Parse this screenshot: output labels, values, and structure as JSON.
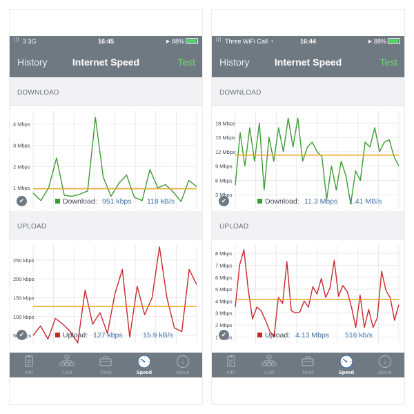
{
  "screens": [
    {
      "status": {
        "signal": "3",
        "carrier": "3G",
        "wifi": false,
        "time": "16:45",
        "battery": "88%"
      },
      "nav": {
        "left": "History",
        "title": "Internet Speed",
        "right": "Test"
      },
      "download": {
        "header": "DOWNLOAD",
        "label": "Download:",
        "value1": "951 kbps",
        "value2": "118 kB/s",
        "color": "#3c9a34",
        "chart_data": {
          "type": "line",
          "yticks": [
            "4 Mbps",
            "3 Mbps",
            "2 Mbps",
            "1 Mbps"
          ],
          "ytick_values": [
            4,
            3,
            2,
            1
          ],
          "ylim": [
            0,
            4.6
          ],
          "average": 0.95,
          "values": [
            0.75,
            0.4,
            1.0,
            2.4,
            0.65,
            0.6,
            0.7,
            0.85,
            4.3,
            1.5,
            0.6,
            1.2,
            1.6,
            0.55,
            0.4,
            1.85,
            1.0,
            1.15,
            0.8,
            0.35,
            1.35,
            1.05
          ]
        }
      },
      "upload": {
        "header": "UPLOAD",
        "label": "Upload:",
        "value1": "127 kbps",
        "value2": "15.9 kB/s",
        "color": "#c9262c",
        "chart_data": {
          "type": "line",
          "yticks": [
            "250 kbps",
            "200 kbps",
            "150 kbps",
            "100 kbps",
            "50 kbps"
          ],
          "ytick_values": [
            250,
            200,
            150,
            100,
            50
          ],
          "ylim": [
            30,
            290
          ],
          "average": 127,
          "values": [
            50,
            75,
            40,
            95,
            80,
            60,
            30,
            170,
            80,
            110,
            55,
            160,
            225,
            45,
            180,
            105,
            150,
            285,
            150,
            70,
            60,
            225,
            185
          ]
        }
      },
      "tabs": [
        "Info",
        "LAN",
        "Tools",
        "Speed",
        "About"
      ],
      "active_tab": "Speed"
    },
    {
      "status": {
        "signal": "",
        "carrier": "Three WiFi Call",
        "wifi": true,
        "time": "16:44",
        "battery": "88%"
      },
      "nav": {
        "left": "History",
        "title": "Internet Speed",
        "right": "Test"
      },
      "download": {
        "header": "DOWNLOAD",
        "label": "Download:",
        "value1": "11.3 Mbps",
        "value2": "1.41 MB/s",
        "color": "#3c9a34",
        "chart_data": {
          "type": "line",
          "yticks": [
            "18 Mbps",
            "15 Mbps",
            "12 Mbps",
            "9 Mbps",
            "6 Mbps",
            "3 Mbps"
          ],
          "ytick_values": [
            18,
            15,
            12,
            9,
            6,
            3
          ],
          "ylim": [
            0,
            20.5
          ],
          "average": 11.3,
          "values": [
            5,
            16,
            9,
            17,
            10,
            18,
            4,
            15,
            10,
            17,
            12,
            19,
            13,
            19,
            10,
            13,
            14,
            12,
            11,
            2,
            9,
            4,
            10,
            7,
            1,
            8,
            6,
            14,
            13,
            17,
            12,
            14,
            14.5,
            11,
            9
          ]
        }
      },
      "upload": {
        "header": "UPLOAD",
        "label": "Upload:",
        "value1": "4.13 Mbps",
        "value2": "516 kb/s",
        "color": "#c9262c",
        "chart_data": {
          "type": "line",
          "yticks": [
            "8 Mbps",
            "7 Mbps",
            "6 Mbps",
            "5 Mbps",
            "4 Mbps",
            "3 Mbps",
            "2 Mbps",
            "1 Mbps"
          ],
          "ytick_values": [
            8,
            7,
            6,
            5,
            4,
            3,
            2,
            1
          ],
          "ylim": [
            0.5,
            8.7
          ],
          "average": 4.13,
          "values": [
            3.5,
            7,
            8.3,
            5,
            2.5,
            3.5,
            3.2,
            2.4,
            1.5,
            1,
            4.3,
            3.8,
            7.3,
            3.2,
            3,
            3.1,
            4,
            3.5,
            5.2,
            4.6,
            5.9,
            4.3,
            5.1,
            7.4,
            4.4,
            5.3,
            4.8,
            3.5,
            1.8,
            4.5,
            1.8,
            3.3,
            1.8,
            2.6,
            6.5,
            4.9,
            4.3,
            2.4,
            3.7
          ]
        }
      },
      "tabs": [
        "Info",
        "LAN",
        "Tools",
        "Speed",
        "About"
      ],
      "active_tab": "Speed"
    }
  ],
  "theme": {
    "bar": "#6f7982",
    "avg_line": "#e8a61c",
    "grid": "#e4e4e6",
    "axis_text": "#3d4650",
    "check": "#6f7982"
  }
}
